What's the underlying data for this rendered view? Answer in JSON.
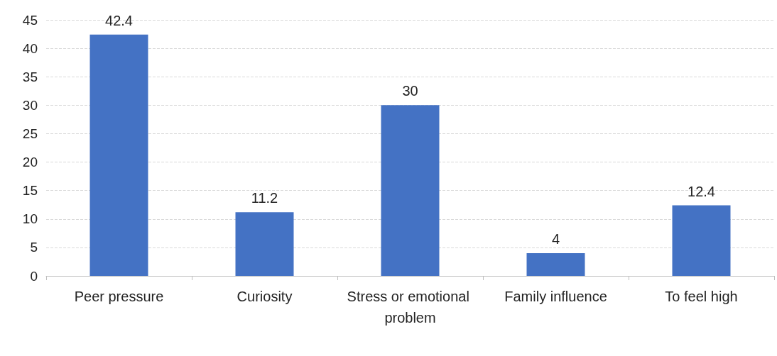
{
  "chart_data": {
    "type": "bar",
    "categories": [
      "Peer pressure",
      "Curiosity",
      "Stress or emotional problem",
      "Family influence",
      "To feel high"
    ],
    "values": [
      42.4,
      11.2,
      30,
      4,
      12.4
    ],
    "color": "#4472c4",
    "ylim": [
      0,
      45
    ],
    "yticks": [
      0,
      5,
      10,
      15,
      20,
      25,
      30,
      35,
      40,
      45
    ],
    "grid": "y",
    "data_labels": true
  }
}
